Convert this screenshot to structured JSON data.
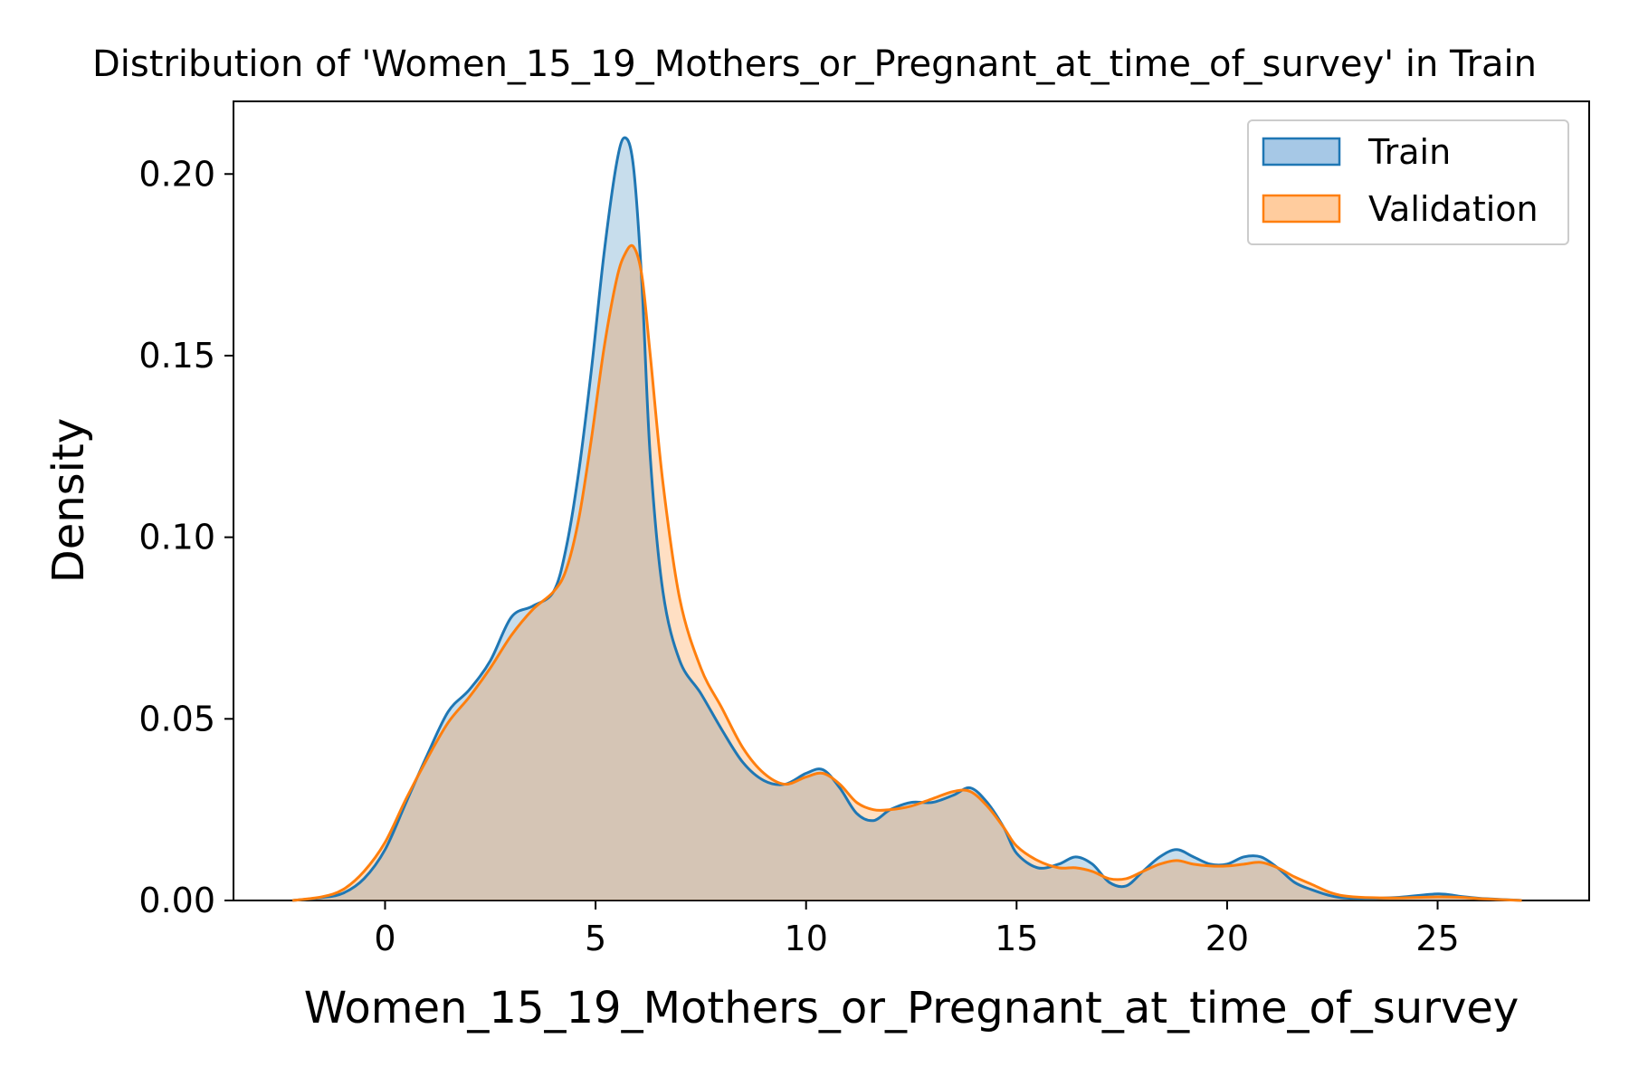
{
  "chart_data": {
    "type": "area",
    "title": "Distribution of 'Women_15_19_Mothers_or_Pregnant_at_time_of_survey' in Train",
    "xlabel": "Women_15_19_Mothers_or_Pregnant_at_time_of_survey",
    "ylabel": "Density",
    "xlim": [
      -3.6,
      28.6
    ],
    "ylim": [
      0,
      0.22
    ],
    "x_ticks": [
      0,
      5,
      10,
      15,
      20,
      25
    ],
    "y_ticks": [
      0.0,
      0.05,
      0.1,
      0.15,
      0.2
    ],
    "x_tick_labels": [
      "0",
      "5",
      "10",
      "15",
      "20",
      "25"
    ],
    "y_tick_labels": [
      "0.00",
      "0.05",
      "0.10",
      "0.15",
      "0.20"
    ],
    "grid": false,
    "legend_position": "top-right",
    "series": [
      {
        "name": "Train",
        "color": "#1f77b4",
        "fill": "#a6c8e6",
        "x": [
          -2.2,
          -1.5,
          -1.0,
          -0.5,
          0.0,
          0.5,
          1.0,
          1.5,
          2.0,
          2.5,
          3.0,
          3.5,
          4.0,
          4.3,
          4.6,
          4.9,
          5.2,
          5.5,
          5.7,
          5.9,
          6.1,
          6.3,
          6.6,
          7.0,
          7.5,
          8.0,
          8.5,
          9.0,
          9.5,
          10.0,
          10.4,
          10.8,
          11.2,
          11.6,
          12.0,
          12.5,
          13.0,
          13.5,
          13.9,
          14.3,
          14.7,
          15.0,
          15.5,
          16.0,
          16.4,
          16.8,
          17.2,
          17.6,
          18.0,
          18.4,
          18.8,
          19.2,
          19.6,
          20.0,
          20.4,
          20.8,
          21.2,
          21.6,
          22.0,
          22.5,
          23.0,
          24.0,
          25.0,
          25.5,
          26.0,
          27.0
        ],
        "y": [
          0.0,
          0.0008,
          0.002,
          0.006,
          0.014,
          0.027,
          0.04,
          0.052,
          0.058,
          0.066,
          0.078,
          0.081,
          0.085,
          0.097,
          0.118,
          0.146,
          0.178,
          0.203,
          0.21,
          0.202,
          0.17,
          0.122,
          0.085,
          0.066,
          0.057,
          0.047,
          0.038,
          0.033,
          0.032,
          0.035,
          0.036,
          0.031,
          0.024,
          0.022,
          0.025,
          0.027,
          0.027,
          0.029,
          0.031,
          0.027,
          0.02,
          0.013,
          0.009,
          0.01,
          0.012,
          0.01,
          0.005,
          0.004,
          0.008,
          0.012,
          0.014,
          0.012,
          0.01,
          0.01,
          0.012,
          0.012,
          0.009,
          0.005,
          0.003,
          0.0012,
          0.0006,
          0.0008,
          0.0018,
          0.0012,
          0.0006,
          0.0
        ]
      },
      {
        "name": "Validation",
        "color": "#ff7f0e",
        "fill": "#ffcc9e",
        "x": [
          -2.2,
          -1.5,
          -1.0,
          -0.5,
          0.0,
          0.5,
          1.0,
          1.5,
          2.0,
          2.5,
          3.0,
          3.5,
          4.0,
          4.3,
          4.6,
          4.9,
          5.2,
          5.5,
          5.7,
          5.9,
          6.1,
          6.3,
          6.6,
          7.0,
          7.5,
          8.0,
          8.5,
          9.0,
          9.5,
          10.0,
          10.4,
          10.8,
          11.2,
          11.6,
          12.0,
          12.5,
          13.0,
          13.5,
          13.9,
          14.3,
          14.7,
          15.0,
          15.5,
          16.0,
          16.4,
          16.8,
          17.2,
          17.6,
          18.0,
          18.4,
          18.8,
          19.2,
          19.6,
          20.0,
          20.4,
          20.8,
          21.2,
          21.6,
          22.0,
          22.5,
          23.0,
          24.0,
          25.0,
          25.5,
          26.0,
          27.0
        ],
        "y": [
          0.0,
          0.001,
          0.003,
          0.008,
          0.016,
          0.028,
          0.039,
          0.049,
          0.056,
          0.064,
          0.073,
          0.08,
          0.085,
          0.091,
          0.105,
          0.127,
          0.152,
          0.171,
          0.178,
          0.18,
          0.172,
          0.15,
          0.115,
          0.083,
          0.064,
          0.053,
          0.042,
          0.035,
          0.032,
          0.034,
          0.035,
          0.032,
          0.027,
          0.025,
          0.025,
          0.026,
          0.028,
          0.03,
          0.03,
          0.026,
          0.02,
          0.015,
          0.011,
          0.009,
          0.009,
          0.008,
          0.006,
          0.006,
          0.008,
          0.01,
          0.011,
          0.01,
          0.0095,
          0.0095,
          0.01,
          0.0105,
          0.009,
          0.0065,
          0.0045,
          0.002,
          0.001,
          0.0007,
          0.001,
          0.0009,
          0.0005,
          0.0
        ]
      }
    ]
  }
}
